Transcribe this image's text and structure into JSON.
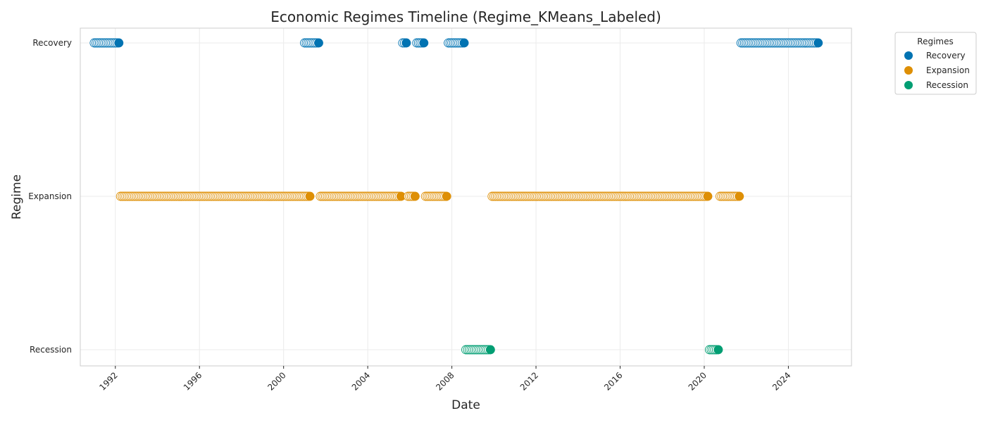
{
  "chart_data": {
    "type": "scatter",
    "title": "Economic Regimes Timeline (Regime_KMeans_Labeled)",
    "xlabel": "Date",
    "ylabel": "Regime",
    "x_axis": "date",
    "xlim": [
      "1990-05-01",
      "2027-01-01"
    ],
    "x_ticks": [
      "1992",
      "1996",
      "2000",
      "2004",
      "2008",
      "2012",
      "2016",
      "2020",
      "2024"
    ],
    "y_categories": [
      "Recovery",
      "Expansion",
      "Recession"
    ],
    "grid": true,
    "legend": {
      "title": "Regimes",
      "placement": "outside-top-right",
      "entries": [
        "Recovery",
        "Expansion",
        "Recession"
      ]
    },
    "colors": {
      "Recovery": "#0173b2",
      "Expansion": "#de8f05",
      "Recession": "#029e73"
    },
    "frequency": "monthly",
    "series": [
      {
        "name": "Recovery",
        "ranges": [
          [
            "1991-01",
            "1992-03"
          ],
          [
            "2001-01",
            "2001-09"
          ],
          [
            "2005-09",
            "2005-11"
          ],
          [
            "2006-05",
            "2006-09"
          ],
          [
            "2007-11",
            "2008-08"
          ],
          [
            "2021-10",
            "2025-06"
          ]
        ]
      },
      {
        "name": "Expansion",
        "ranges": [
          [
            "1992-04",
            "2001-04"
          ],
          [
            "2001-10",
            "2005-08"
          ],
          [
            "2005-12",
            "2006-04"
          ],
          [
            "2006-10",
            "2007-10"
          ],
          [
            "2009-12",
            "2020-03"
          ],
          [
            "2020-10",
            "2021-09"
          ]
        ]
      },
      {
        "name": "Recession",
        "ranges": [
          [
            "2008-09",
            "2009-11"
          ],
          [
            "2020-04",
            "2020-09"
          ]
        ]
      }
    ]
  }
}
